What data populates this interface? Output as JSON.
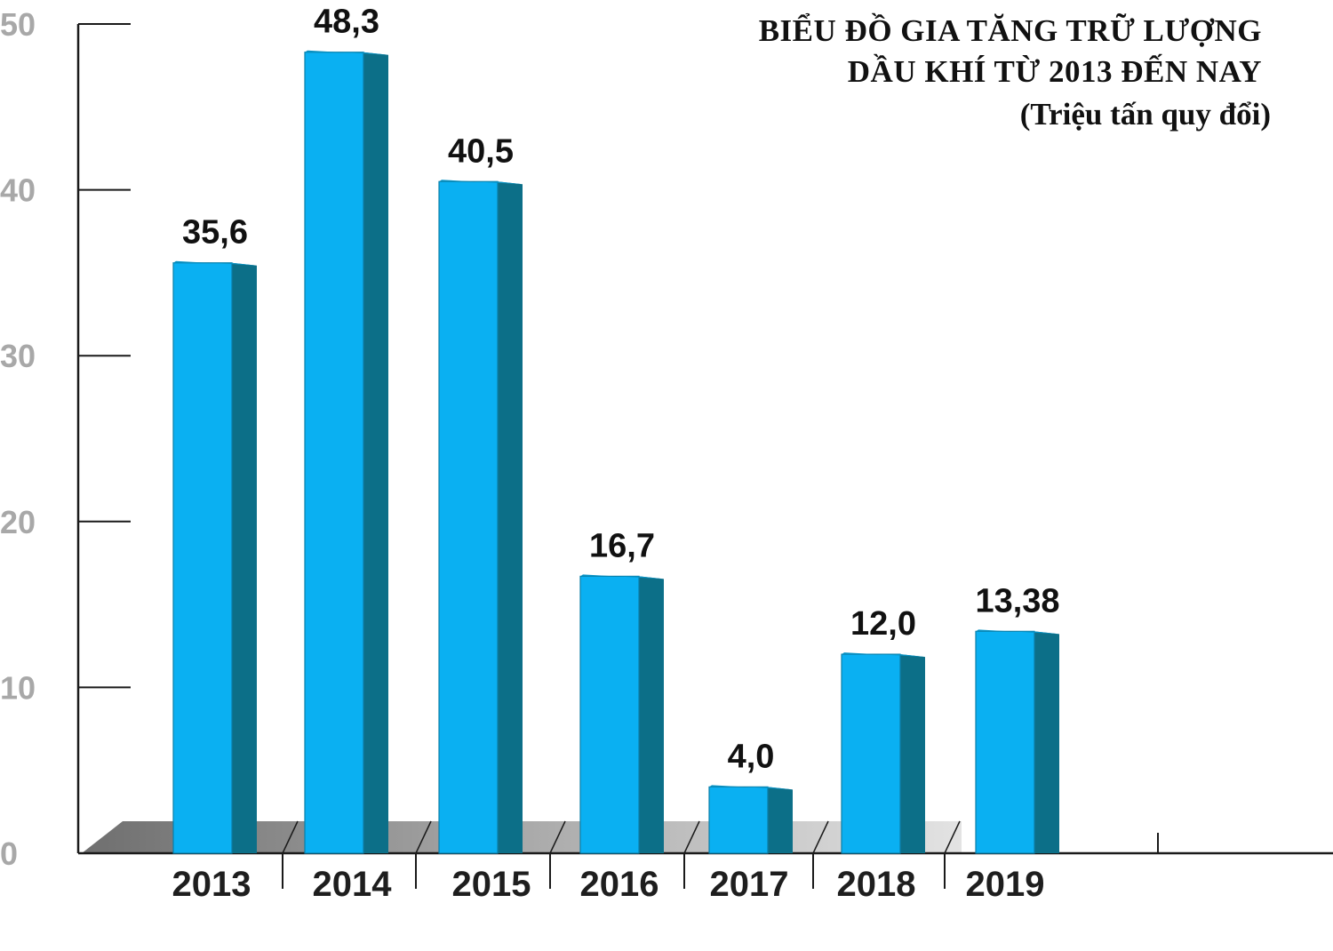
{
  "colors": {
    "bar_front": "#0ab0f2",
    "bar_side": "#0c6f88",
    "bar_top": "#0892c4",
    "axis": "#1a1a1a",
    "floor_dark": "#6f6f6f",
    "floor_light": "#e3e3e3",
    "ytick_label": "#a8a8a8"
  },
  "chart_data": {
    "type": "bar",
    "title": "BIỂU ĐỒ GIA TĂNG TRỮ LƯỢNG",
    "title_line2": "DẦU KHÍ TỪ 2013 ĐẾN NAY",
    "subtitle": "(Triệu tấn quy đổi)",
    "categories": [
      "2013",
      "2014",
      "2015",
      "2016",
      "2017",
      "2018",
      "2019"
    ],
    "values": [
      35.6,
      48.3,
      40.5,
      16.7,
      4.0,
      12.0,
      13.38
    ],
    "value_labels": [
      "35,6",
      "48,3",
      "40,5",
      "16,7",
      "4,0",
      "12,0",
      "13,38"
    ],
    "yticks": [
      0,
      10,
      20,
      30,
      40,
      50
    ],
    "ylim": [
      0,
      50
    ],
    "xlabel": "",
    "ylabel": "",
    "grid": false,
    "legend": "none"
  }
}
